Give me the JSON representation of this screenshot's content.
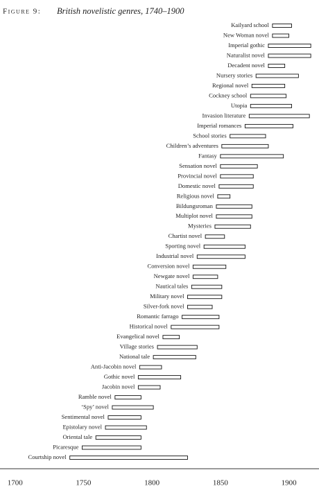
{
  "chart_data": {
    "type": "range_bar",
    "figure_label": "Figure 9:",
    "title": "British novelistic genres, 1740–1900",
    "categories": [
      "Kailyard school",
      "New Woman novel",
      "Imperial gothic",
      "Naturalist novel",
      "Decadent novel",
      "Nursery stories",
      "Regional novel",
      "Cockney school",
      "Utopia",
      "Invasion literature",
      "Imperial romances",
      "School stories",
      "Children’s adventures",
      "Fantasy",
      "Sensation novel",
      "Provincial novel",
      "Domestic novel",
      "Religious novel",
      "Bildungsroman",
      "Multiplot novel",
      "Mysteries",
      "Chartist novel",
      "Sporting novel",
      "Industrial novel",
      "Conversion novel",
      "Newgate novel",
      "Nautical tales",
      "Military novel",
      "Silver-fork novel",
      "Romantic farrago",
      "Historical novel",
      "Evangelical novel",
      "Village stories",
      "National tale",
      "Anti-Jacobin novel",
      "Gothic novel",
      "Jacobin novel",
      "Ramble novel",
      "‘Spy’ novel",
      "Sentimental novel",
      "Epistolary novel",
      "Oriental tale",
      "Picaresque",
      "Courtship novel"
    ],
    "starts": [
      1888,
      1888,
      1885,
      1885,
      1885,
      1876,
      1873,
      1872,
      1872,
      1871,
      1868,
      1857,
      1851,
      1850,
      1850,
      1850,
      1849,
      1848,
      1847,
      1847,
      1846,
      1839,
      1838,
      1833,
      1830,
      1830,
      1829,
      1826,
      1826,
      1822,
      1814,
      1808,
      1804,
      1801,
      1791,
      1790,
      1790,
      1773,
      1771,
      1768,
      1766,
      1759,
      1749,
      1740
    ],
    "ends": [
      1902,
      1900,
      1916,
      1916,
      1897,
      1907,
      1897,
      1898,
      1902,
      1915,
      1903,
      1883,
      1885,
      1896,
      1877,
      1874,
      1874,
      1857,
      1873,
      1873,
      1872,
      1853,
      1868,
      1868,
      1854,
      1848,
      1851,
      1851,
      1844,
      1849,
      1849,
      1820,
      1833,
      1832,
      1807,
      1821,
      1806,
      1792,
      1801,
      1792,
      1796,
      1792,
      1792,
      1826
    ],
    "xlim": [
      1689,
      1922
    ],
    "xticks": [
      1700,
      1750,
      1800,
      1850,
      1900
    ],
    "color": "#ffffff",
    "edge_color": "#111111"
  }
}
